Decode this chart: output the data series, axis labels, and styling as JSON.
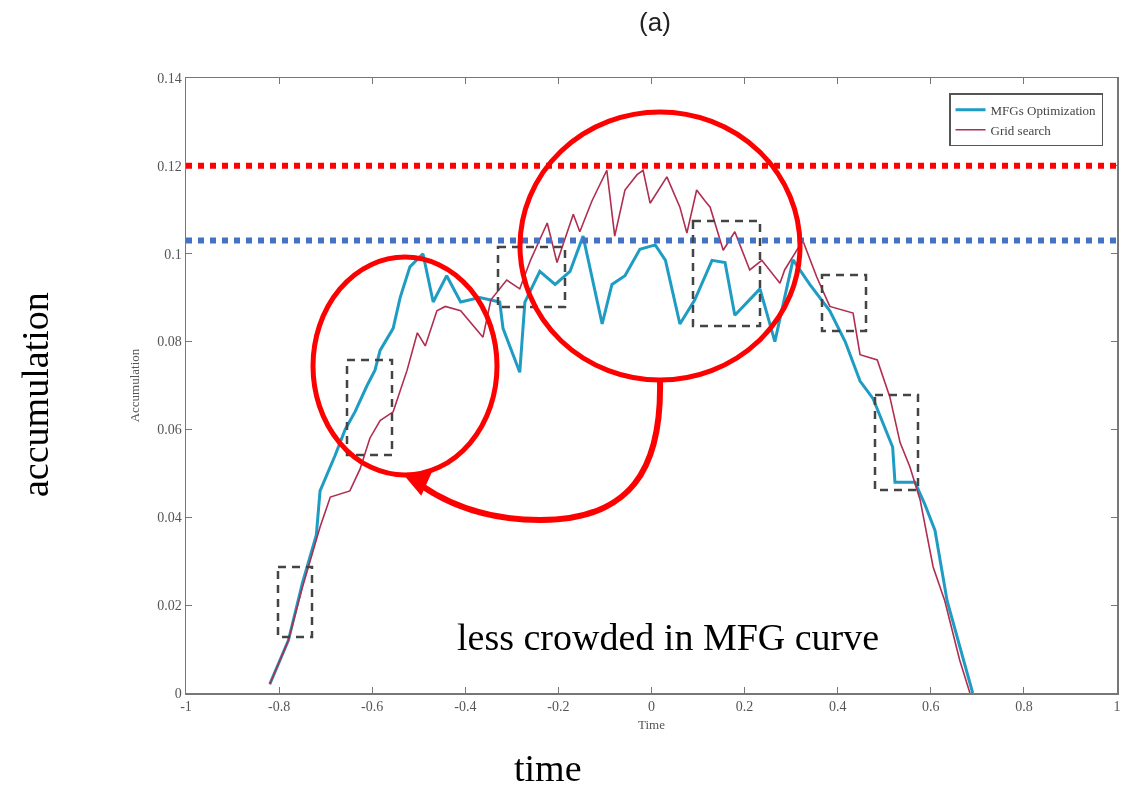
{
  "chart_data": {
    "type": "line",
    "title": "(a)",
    "xlabel": "Time",
    "ylabel": "Accumulation",
    "annotations": [
      "less crowded in MFG curve",
      "accumulation",
      "time"
    ],
    "xlim": [
      -1,
      1
    ],
    "ylim": [
      0,
      0.14
    ],
    "xticks": [
      -1,
      -0.8,
      -0.6,
      -0.4,
      -0.2,
      0,
      0.2,
      0.4,
      0.6,
      0.8,
      1
    ],
    "yticks": [
      0,
      0.02,
      0.04,
      0.06,
      0.08,
      0.1,
      0.12,
      0.14
    ],
    "legend": "top right",
    "ref_lines": [
      {
        "axis": "y",
        "value": 0.12,
        "color": "#ff0000",
        "line_style": "dotted"
      },
      {
        "axis": "y",
        "value": 0.103,
        "color": "#4472c4",
        "line_style": "dotted"
      }
    ],
    "series": [
      {
        "name": "MFGs Optimization",
        "color": "#1f9cc4",
        "x": [
          -0.82,
          -0.78,
          -0.75,
          -0.72,
          -0.712,
          -0.68,
          -0.658,
          -0.637,
          -0.611,
          -0.594,
          -0.583,
          -0.555,
          -0.54,
          -0.519,
          -0.491,
          -0.469,
          -0.44,
          -0.41,
          -0.369,
          -0.326,
          -0.319,
          -0.283,
          -0.272,
          -0.24,
          -0.207,
          -0.175,
          -0.147,
          -0.106,
          -0.085,
          -0.057,
          -0.025,
          0.008,
          0.03,
          0.061,
          0.093,
          0.13,
          0.158,
          0.179,
          0.233,
          0.265,
          0.304,
          0.34,
          0.383,
          0.416,
          0.448,
          0.476,
          0.518,
          0.523,
          0.566,
          0.587,
          0.609,
          0.635,
          0.669,
          0.69
        ],
        "values": [
          0.002,
          0.012,
          0.025,
          0.036,
          0.046,
          0.054,
          0.06,
          0.064,
          0.07,
          0.0735,
          0.078,
          0.083,
          0.09,
          0.097,
          0.1,
          0.089,
          0.095,
          0.089,
          0.09,
          0.089,
          0.083,
          0.073,
          0.089,
          0.096,
          0.093,
          0.096,
          0.104,
          0.084,
          0.093,
          0.095,
          0.101,
          0.102,
          0.0985,
          0.084,
          0.0895,
          0.0985,
          0.098,
          0.086,
          0.092,
          0.08,
          0.0986,
          0.093,
          0.087,
          0.08,
          0.071,
          0.067,
          0.056,
          0.048,
          0.048,
          0.043,
          0.037,
          0.021,
          0.008,
          0
        ]
      },
      {
        "name": "Grid search",
        "color": "#b02d50",
        "x": [
          -0.82,
          -0.78,
          -0.75,
          -0.712,
          -0.69,
          -0.648,
          -0.626,
          -0.605,
          -0.583,
          -0.555,
          -0.525,
          -0.503,
          -0.486,
          -0.461,
          -0.443,
          -0.41,
          -0.362,
          -0.345,
          -0.311,
          -0.283,
          -0.26,
          -0.224,
          -0.203,
          -0.168,
          -0.154,
          -0.128,
          -0.096,
          -0.079,
          -0.057,
          -0.031,
          -0.018,
          -0.003,
          0.033,
          0.061,
          0.076,
          0.097,
          0.115,
          0.126,
          0.154,
          0.179,
          0.211,
          0.237,
          0.276,
          0.286,
          0.325,
          0.355,
          0.383,
          0.433,
          0.448,
          0.485,
          0.512,
          0.534,
          0.555,
          0.577,
          0.605,
          0.63,
          0.662,
          0.684
        ],
        "values": [
          0.002,
          0.012,
          0.024,
          0.0378,
          0.0446,
          0.046,
          0.051,
          0.058,
          0.062,
          0.064,
          0.0735,
          0.082,
          0.079,
          0.087,
          0.088,
          0.087,
          0.081,
          0.0895,
          0.094,
          0.092,
          0.0985,
          0.107,
          0.098,
          0.109,
          0.105,
          0.112,
          0.119,
          0.104,
          0.1145,
          0.118,
          0.119,
          0.1115,
          0.1175,
          0.1106,
          0.1047,
          0.1145,
          0.112,
          0.1106,
          0.1008,
          0.105,
          0.0963,
          0.0985,
          0.0933,
          0.0963,
          0.103,
          0.0947,
          0.088,
          0.0865,
          0.077,
          0.0758,
          0.0674,
          0.057,
          0.0515,
          0.044,
          0.0287,
          0.021,
          0.0075,
          0
        ]
      }
    ]
  }
}
